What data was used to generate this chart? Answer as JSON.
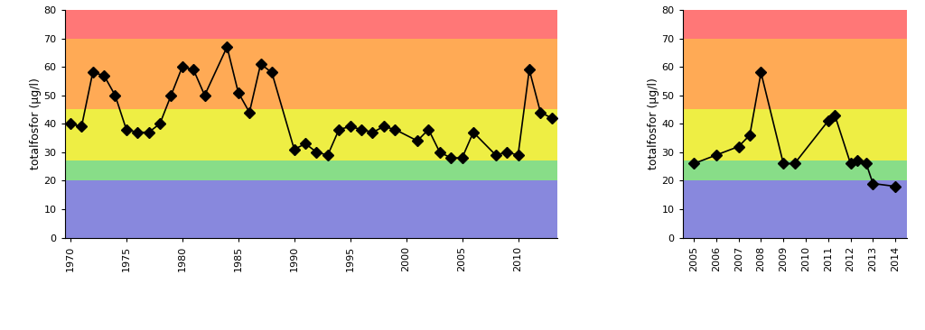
{
  "left_years": [
    1970,
    1971,
    1972,
    1973,
    1974,
    1975,
    1976,
    1977,
    1978,
    1979,
    1980,
    1981,
    1982,
    1984,
    1985,
    1986,
    1987,
    1988,
    1990,
    1991,
    1992,
    1993,
    1994,
    1995,
    1996,
    1997,
    1998,
    1999,
    2001,
    2002,
    2003,
    2004,
    2005,
    2006,
    2008,
    2009,
    2010,
    2011,
    2012,
    2013
  ],
  "left_values": [
    40,
    39,
    58,
    57,
    50,
    38,
    37,
    37,
    40,
    50,
    60,
    59,
    50,
    67,
    51,
    44,
    61,
    58,
    31,
    33,
    30,
    29,
    38,
    39,
    38,
    37,
    39,
    38,
    34,
    38,
    30,
    28,
    28,
    37,
    29,
    30,
    29,
    59,
    44,
    42
  ],
  "left_xlim": [
    1969.5,
    2013.5
  ],
  "left_xticks": [
    1970,
    1975,
    1980,
    1985,
    1990,
    1995,
    2000,
    2005,
    2010
  ],
  "right_years": [
    2005,
    2006,
    2007,
    2007.5,
    2008,
    2009,
    2009.5,
    2011,
    2011.3,
    2012,
    2012.3,
    2012.7,
    2013,
    2014
  ],
  "right_values": [
    26,
    29,
    32,
    36,
    58,
    26,
    26,
    41,
    43,
    26,
    27,
    26,
    19,
    18
  ],
  "right_xlim": [
    2004.5,
    2014.5
  ],
  "right_xticks": [
    2005,
    2006,
    2007,
    2008,
    2009,
    2010,
    2011,
    2012,
    2013,
    2014
  ],
  "bands": [
    {
      "ymin": 0,
      "ymax": 20,
      "color": "#8888dd"
    },
    {
      "ymin": 20,
      "ymax": 27,
      "color": "#88dd88"
    },
    {
      "ymin": 27,
      "ymax": 45,
      "color": "#eeee44"
    },
    {
      "ymin": 45,
      "ymax": 70,
      "color": "#ffaa55"
    },
    {
      "ymin": 70,
      "ymax": 80,
      "color": "#ff7777"
    }
  ],
  "ylabel": "totalfosfor (μg/l)",
  "ylim": [
    0,
    80
  ],
  "yticks": [
    0,
    10,
    20,
    30,
    40,
    50,
    60,
    70,
    80
  ],
  "line_color": "black",
  "marker": "D",
  "markersize": 6,
  "linewidth": 1.2,
  "bg_color": "#ffffff",
  "tick_fontsize": 8,
  "ylabel_fontsize": 9
}
